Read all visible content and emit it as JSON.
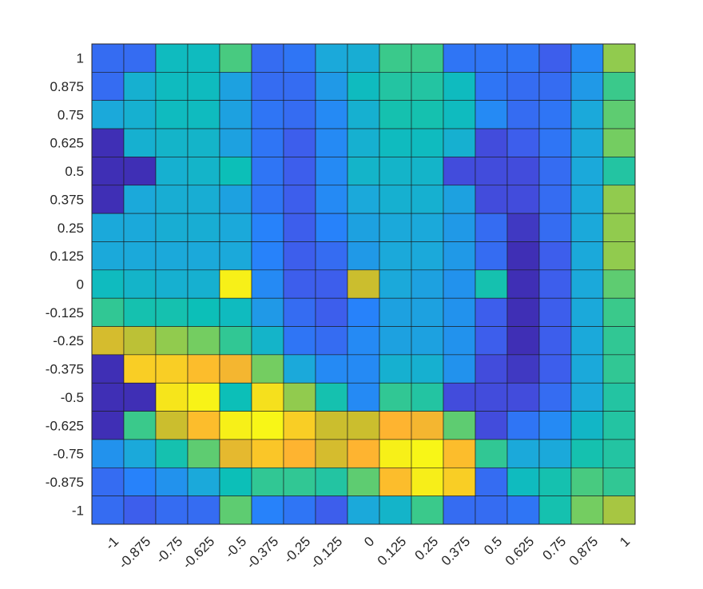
{
  "chart_data": {
    "type": "heatmap",
    "title": "",
    "xlabel": "",
    "ylabel": "",
    "x_ticks": [
      "-1",
      "-0.875",
      "-0.75",
      "-0.625",
      "-0.5",
      "-0.375",
      "-0.25",
      "-0.125",
      "0",
      "0.125",
      "0.25",
      "0.375",
      "0.5",
      "0.625",
      "0.75",
      "0.875",
      "1"
    ],
    "y_ticks": [
      "1",
      "0.875",
      "0.75",
      "0.625",
      "0.5",
      "0.375",
      "0.25",
      "0.125",
      "0",
      "-0.125",
      "-0.25",
      "-0.375",
      "-0.5",
      "-0.625",
      "-0.75",
      "-0.875",
      "-1"
    ],
    "colormap": "parula",
    "value_range": [
      0,
      1
    ],
    "colormap_stops": [
      "#3e26a8",
      "#4355e9",
      "#2782fa",
      "#1ba9da",
      "#0cbfb8",
      "#3ac98b",
      "#82ce56",
      "#cbbe2e",
      "#feb430",
      "#f5e01d",
      "#f9fb15"
    ],
    "values": [
      [
        0.15,
        0.15,
        0.38,
        0.38,
        0.52,
        0.15,
        0.17,
        0.3,
        0.32,
        0.5,
        0.5,
        0.17,
        0.17,
        0.17,
        0.12,
        0.22,
        0.62
      ],
      [
        0.15,
        0.33,
        0.38,
        0.38,
        0.28,
        0.15,
        0.15,
        0.26,
        0.38,
        0.45,
        0.45,
        0.38,
        0.17,
        0.15,
        0.15,
        0.26,
        0.5
      ],
      [
        0.3,
        0.33,
        0.38,
        0.38,
        0.28,
        0.17,
        0.15,
        0.22,
        0.33,
        0.42,
        0.42,
        0.38,
        0.22,
        0.15,
        0.17,
        0.3,
        0.55
      ],
      [
        0.02,
        0.33,
        0.35,
        0.35,
        0.28,
        0.17,
        0.12,
        0.22,
        0.33,
        0.38,
        0.38,
        0.33,
        0.08,
        0.12,
        0.17,
        0.3,
        0.58
      ],
      [
        0.02,
        0.02,
        0.33,
        0.35,
        0.4,
        0.17,
        0.12,
        0.22,
        0.35,
        0.35,
        0.35,
        0.08,
        0.08,
        0.08,
        0.15,
        0.3,
        0.45
      ],
      [
        0.02,
        0.3,
        0.32,
        0.32,
        0.28,
        0.17,
        0.12,
        0.22,
        0.3,
        0.33,
        0.33,
        0.28,
        0.08,
        0.08,
        0.15,
        0.3,
        0.62
      ],
      [
        0.3,
        0.3,
        0.32,
        0.32,
        0.3,
        0.2,
        0.12,
        0.2,
        0.28,
        0.3,
        0.3,
        0.26,
        0.15,
        0.04,
        0.15,
        0.3,
        0.62
      ],
      [
        0.3,
        0.3,
        0.3,
        0.3,
        0.3,
        0.2,
        0.12,
        0.15,
        0.26,
        0.3,
        0.3,
        0.26,
        0.15,
        0.02,
        0.12,
        0.3,
        0.62
      ],
      [
        0.38,
        0.35,
        0.33,
        0.33,
        0.96,
        0.22,
        0.12,
        0.12,
        0.7,
        0.3,
        0.28,
        0.24,
        0.42,
        0.02,
        0.12,
        0.3,
        0.55
      ],
      [
        0.48,
        0.42,
        0.42,
        0.4,
        0.38,
        0.26,
        0.15,
        0.12,
        0.2,
        0.28,
        0.28,
        0.24,
        0.12,
        0.02,
        0.12,
        0.3,
        0.5
      ],
      [
        0.72,
        0.68,
        0.62,
        0.58,
        0.48,
        0.35,
        0.17,
        0.15,
        0.22,
        0.28,
        0.28,
        0.24,
        0.12,
        0.02,
        0.12,
        0.3,
        0.48
      ],
      [
        0.02,
        0.86,
        0.86,
        0.82,
        0.78,
        0.58,
        0.3,
        0.22,
        0.22,
        0.33,
        0.33,
        0.24,
        0.08,
        0.04,
        0.12,
        0.3,
        0.48
      ],
      [
        0.02,
        0.02,
        0.92,
        0.97,
        0.4,
        0.9,
        0.62,
        0.42,
        0.22,
        0.48,
        0.45,
        0.08,
        0.08,
        0.08,
        0.15,
        0.3,
        0.45
      ],
      [
        0.02,
        0.5,
        0.7,
        0.82,
        0.96,
        0.98,
        0.86,
        0.7,
        0.7,
        0.8,
        0.78,
        0.55,
        0.08,
        0.17,
        0.22,
        0.36,
        0.45
      ],
      [
        0.24,
        0.3,
        0.42,
        0.55,
        0.75,
        0.84,
        0.8,
        0.72,
        0.8,
        0.96,
        0.98,
        0.82,
        0.48,
        0.3,
        0.3,
        0.42,
        0.45
      ],
      [
        0.15,
        0.2,
        0.24,
        0.3,
        0.4,
        0.48,
        0.48,
        0.45,
        0.55,
        0.82,
        0.95,
        0.86,
        0.15,
        0.38,
        0.42,
        0.52,
        0.48
      ],
      [
        0.15,
        0.12,
        0.15,
        0.15,
        0.55,
        0.2,
        0.17,
        0.12,
        0.3,
        0.35,
        0.5,
        0.15,
        0.15,
        0.17,
        0.42,
        0.58,
        0.65
      ]
    ]
  }
}
